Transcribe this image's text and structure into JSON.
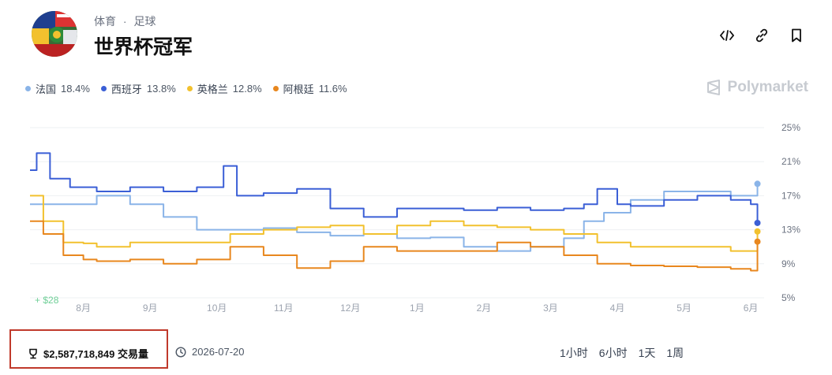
{
  "header": {
    "breadcrumb": [
      "体育",
      "·",
      "足球"
    ],
    "title": "世界杯冠军"
  },
  "legend": [
    {
      "name": "法国",
      "pct": "18.4%",
      "color": "#8ab4e8"
    },
    {
      "name": "西班牙",
      "pct": "13.8%",
      "color": "#3b5fd6"
    },
    {
      "name": "英格兰",
      "pct": "12.8%",
      "color": "#f2c12e"
    },
    {
      "name": "阿根廷",
      "pct": "11.6%",
      "color": "#e8871e"
    }
  ],
  "brand": "Polymarket",
  "chart_data": {
    "type": "line",
    "x_ticks": [
      "8月",
      "9月",
      "10月",
      "11月",
      "12月",
      "1月",
      "2月",
      "3月",
      "4月",
      "5月",
      "6月"
    ],
    "y_ticks": [
      "25%",
      "21%",
      "17%",
      "13%",
      "9%",
      "5%"
    ],
    "ylim": [
      5,
      25
    ],
    "start_label": "$28",
    "series": [
      {
        "name": "法国",
        "color": "#8ab4e8",
        "points": [
          [
            0,
            16
          ],
          [
            1,
            17
          ],
          [
            1.5,
            16
          ],
          [
            2,
            14.5
          ],
          [
            2.5,
            13
          ],
          [
            3,
            13
          ],
          [
            3.5,
            13.2
          ],
          [
            4,
            12.7
          ],
          [
            4.5,
            12.3
          ],
          [
            5,
            12.5
          ],
          [
            5.5,
            12
          ],
          [
            6,
            12.1
          ],
          [
            6.5,
            11
          ],
          [
            7,
            10.5
          ],
          [
            7.5,
            11
          ],
          [
            8,
            12
          ],
          [
            8.3,
            14
          ],
          [
            8.6,
            15
          ],
          [
            9,
            16.5
          ],
          [
            9.5,
            17.5
          ],
          [
            10,
            17.5
          ],
          [
            10.5,
            17
          ],
          [
            10.9,
            18.4
          ]
        ]
      },
      {
        "name": "西班牙",
        "color": "#3b5fd6",
        "points": [
          [
            0,
            20
          ],
          [
            0.1,
            22
          ],
          [
            0.3,
            19
          ],
          [
            0.6,
            18
          ],
          [
            1,
            17.5
          ],
          [
            1.5,
            18
          ],
          [
            2,
            17.5
          ],
          [
            2.5,
            18
          ],
          [
            2.9,
            20.5
          ],
          [
            3.1,
            17
          ],
          [
            3.5,
            17.3
          ],
          [
            4,
            17.8
          ],
          [
            4.5,
            15.5
          ],
          [
            5,
            14.5
          ],
          [
            5.5,
            15.5
          ],
          [
            6,
            15.5
          ],
          [
            6.5,
            15.3
          ],
          [
            7,
            15.6
          ],
          [
            7.5,
            15.3
          ],
          [
            8,
            15.5
          ],
          [
            8.3,
            16
          ],
          [
            8.5,
            17.8
          ],
          [
            8.8,
            16
          ],
          [
            9,
            15.8
          ],
          [
            9.5,
            16.5
          ],
          [
            10,
            17
          ],
          [
            10.5,
            16.5
          ],
          [
            10.8,
            16
          ],
          [
            10.9,
            13.8
          ]
        ]
      },
      {
        "name": "英格兰",
        "color": "#f2c12e",
        "points": [
          [
            0,
            17
          ],
          [
            0.2,
            14
          ],
          [
            0.5,
            11.5
          ],
          [
            0.8,
            11.4
          ],
          [
            1,
            11
          ],
          [
            1.5,
            11.5
          ],
          [
            2,
            11.5
          ],
          [
            2.5,
            11.5
          ],
          [
            3,
            12.5
          ],
          [
            3.5,
            13
          ],
          [
            4,
            13.3
          ],
          [
            4.5,
            13.5
          ],
          [
            5,
            12.5
          ],
          [
            5.5,
            13.5
          ],
          [
            6,
            14
          ],
          [
            6.5,
            13.5
          ],
          [
            7,
            13.3
          ],
          [
            7.5,
            13
          ],
          [
            8,
            12.5
          ],
          [
            8.5,
            11.5
          ],
          [
            9,
            11
          ],
          [
            9.5,
            11
          ],
          [
            10,
            11
          ],
          [
            10.5,
            10.5
          ],
          [
            10.9,
            12.8
          ]
        ]
      },
      {
        "name": "阿根廷",
        "color": "#e8871e",
        "points": [
          [
            0,
            14
          ],
          [
            0.2,
            12.5
          ],
          [
            0.5,
            10
          ],
          [
            0.8,
            9.5
          ],
          [
            1,
            9.3
          ],
          [
            1.5,
            9.5
          ],
          [
            2,
            9
          ],
          [
            2.5,
            9.5
          ],
          [
            3,
            11
          ],
          [
            3.5,
            10
          ],
          [
            4,
            8.5
          ],
          [
            4.5,
            9.3
          ],
          [
            5,
            11
          ],
          [
            5.5,
            10.5
          ],
          [
            6,
            10.5
          ],
          [
            6.5,
            10.5
          ],
          [
            7,
            11.5
          ],
          [
            7.5,
            11
          ],
          [
            8,
            10
          ],
          [
            8.5,
            9
          ],
          [
            9,
            8.8
          ],
          [
            9.5,
            8.7
          ],
          [
            10,
            8.6
          ],
          [
            10.5,
            8.4
          ],
          [
            10.8,
            8.2
          ],
          [
            10.9,
            11.6
          ]
        ]
      }
    ]
  },
  "footer": {
    "volume": "$2,587,718,849 交易量",
    "date": "2026-07-20",
    "ranges": [
      "1小时",
      "6小时",
      "1天",
      "1周"
    ]
  }
}
